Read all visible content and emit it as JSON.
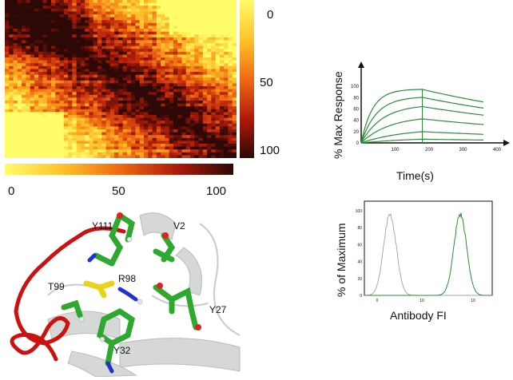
{
  "heatmap": {
    "colorbar_right_ticks": [
      "0",
      "50",
      "100"
    ],
    "colorbar_bottom_ticks": [
      "0",
      "50",
      "100"
    ],
    "colors": {
      "low": "#fff35a",
      "mid": "#e8541c",
      "high": "#3a0c06"
    }
  },
  "structure": {
    "residue_labels": [
      "Y111",
      "V2",
      "R98",
      "T99",
      "Y27",
      "Y32"
    ],
    "colors": {
      "loop": "#cc1111",
      "green": "#2ea82e",
      "yellow": "#e8d21a",
      "ribbon": "#cfd2d2"
    }
  },
  "chart_data": [
    {
      "type": "line",
      "xlabel": "Time(s)",
      "ylabel": "% Max Response",
      "x_ticks": [
        "100",
        "200",
        "300",
        "400"
      ],
      "y_ticks": [
        "0",
        "20",
        "40",
        "60",
        "80",
        "100"
      ],
      "xlim": [
        0,
        400
      ],
      "ylim": [
        0,
        110
      ],
      "association_end": 180,
      "series": [
        {
          "plateau": 95,
          "rate": 0.03
        },
        {
          "plateau": 82,
          "rate": 0.022
        },
        {
          "plateau": 68,
          "rate": 0.016
        },
        {
          "plateau": 48,
          "rate": 0.012
        },
        {
          "plateau": 26,
          "rate": 0.008
        },
        {
          "plateau": 10,
          "rate": 0.006
        }
      ],
      "color": "#2e8b3a"
    },
    {
      "type": "line",
      "xlabel": "Antibody FI",
      "ylabel": "% of Maximum",
      "y_ticks": [
        "0",
        "20",
        "40",
        "60",
        "80",
        "100"
      ],
      "x_ticks": [
        "0",
        "10",
        "10"
      ],
      "series": [
        {
          "peak": 100,
          "center": 0.2,
          "color": "#aaaaaa"
        },
        {
          "peak": 100,
          "center": 0.75,
          "color": "#2e8b3a"
        }
      ]
    }
  ]
}
